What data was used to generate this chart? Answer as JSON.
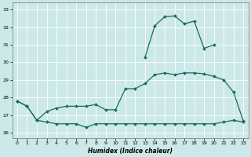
{
  "xlabel": "Humidex (Indice chaleur)",
  "background_color": "#cce8e8",
  "grid_color": "#ffffff",
  "line_color": "#1a6b60",
  "xlim": [
    -0.5,
    23.5
  ],
  "ylim": [
    25.7,
    33.4
  ],
  "yticks": [
    26,
    27,
    28,
    29,
    30,
    31,
    32,
    33
  ],
  "xticks": [
    0,
    1,
    2,
    3,
    4,
    5,
    6,
    7,
    8,
    9,
    10,
    11,
    12,
    13,
    14,
    15,
    16,
    17,
    18,
    19,
    20,
    21,
    22,
    23
  ],
  "series1_x": [
    0,
    1,
    2,
    3,
    4,
    5,
    6,
    7,
    8,
    9,
    10,
    11,
    12,
    13,
    14,
    15,
    16,
    17,
    18,
    19,
    20,
    21,
    22,
    23
  ],
  "series1_y": [
    27.8,
    27.5,
    26.7,
    26.6,
    26.5,
    26.5,
    26.5,
    26.3,
    26.5,
    26.5,
    26.5,
    26.5,
    26.5,
    26.5,
    26.5,
    26.5,
    26.5,
    26.5,
    26.5,
    26.5,
    26.5,
    26.6,
    26.7,
    26.6
  ],
  "series2_x": [
    0,
    1,
    2,
    3,
    4,
    5,
    6,
    7,
    8,
    9,
    10,
    11,
    12,
    13,
    14,
    15,
    16,
    17,
    18,
    19,
    20,
    21,
    22,
    23
  ],
  "series2_y": [
    27.8,
    27.5,
    26.7,
    27.2,
    27.4,
    27.5,
    27.5,
    27.5,
    27.6,
    27.3,
    27.3,
    28.5,
    28.5,
    28.8,
    29.3,
    29.4,
    29.3,
    29.4,
    29.4,
    29.35,
    29.2,
    29.0,
    28.3,
    26.65
  ],
  "series3_x": [
    13,
    14,
    15,
    16,
    17,
    18,
    19,
    20
  ],
  "series3_y": [
    30.3,
    32.1,
    32.6,
    32.65,
    32.2,
    32.35,
    30.8,
    31.0
  ]
}
